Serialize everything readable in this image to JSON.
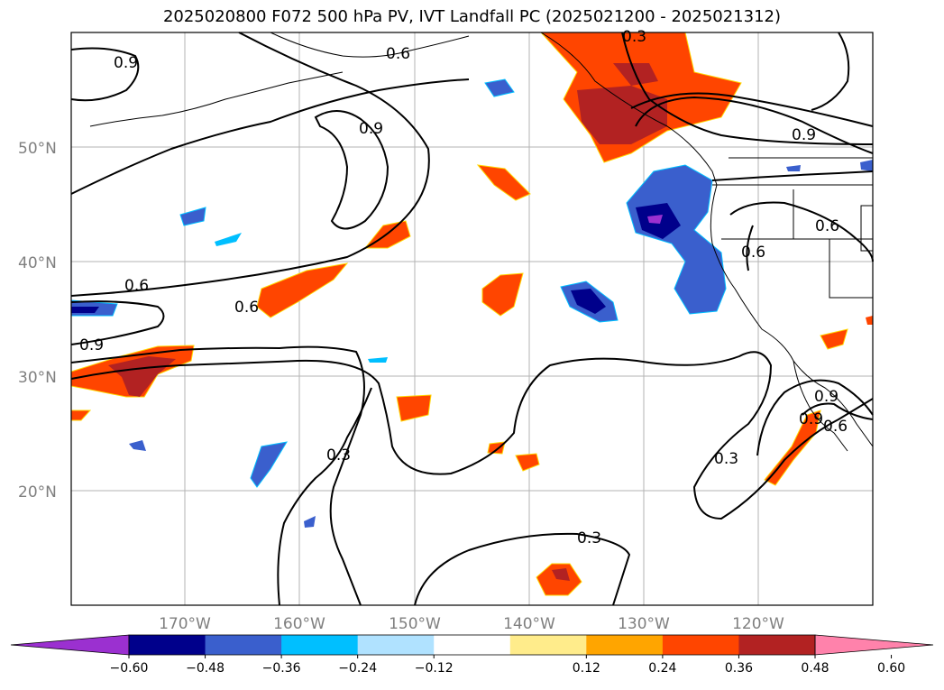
{
  "title": "2025020800 F072 500 hPa PV, IVT Landfall PC (2025021200 - 2025021312)",
  "map": {
    "lat_labels": [
      "50°N",
      "40°N",
      "30°N",
      "20°N"
    ],
    "lon_labels": [
      "170°W",
      "160°W",
      "150°W",
      "140°W",
      "130°W",
      "120°W"
    ],
    "contour_labels": [
      "0.9",
      "0.6",
      "0.3",
      "0.9",
      "0.9",
      "0.6",
      "0.6",
      "0.6",
      "0.9",
      "0.3",
      "0.3",
      "0.9",
      "0.6",
      "0.9",
      "0.6",
      "0.3"
    ],
    "land_color": "#ffffff",
    "coast_color": "#000000"
  },
  "colorbar": {
    "ticks": [
      "−0.60",
      "−0.48",
      "−0.36",
      "−0.24",
      "−0.12",
      "0.12",
      "0.24",
      "0.36",
      "0.48",
      "0.60"
    ],
    "colors": [
      "#9b30d0",
      "#00008b",
      "#3a5fcd",
      "#00bfff",
      "#b0e2ff",
      "#ffffff",
      "#ffec8b",
      "#ffa500",
      "#ff4500",
      "#b22222",
      "#ff82ab"
    ]
  }
}
